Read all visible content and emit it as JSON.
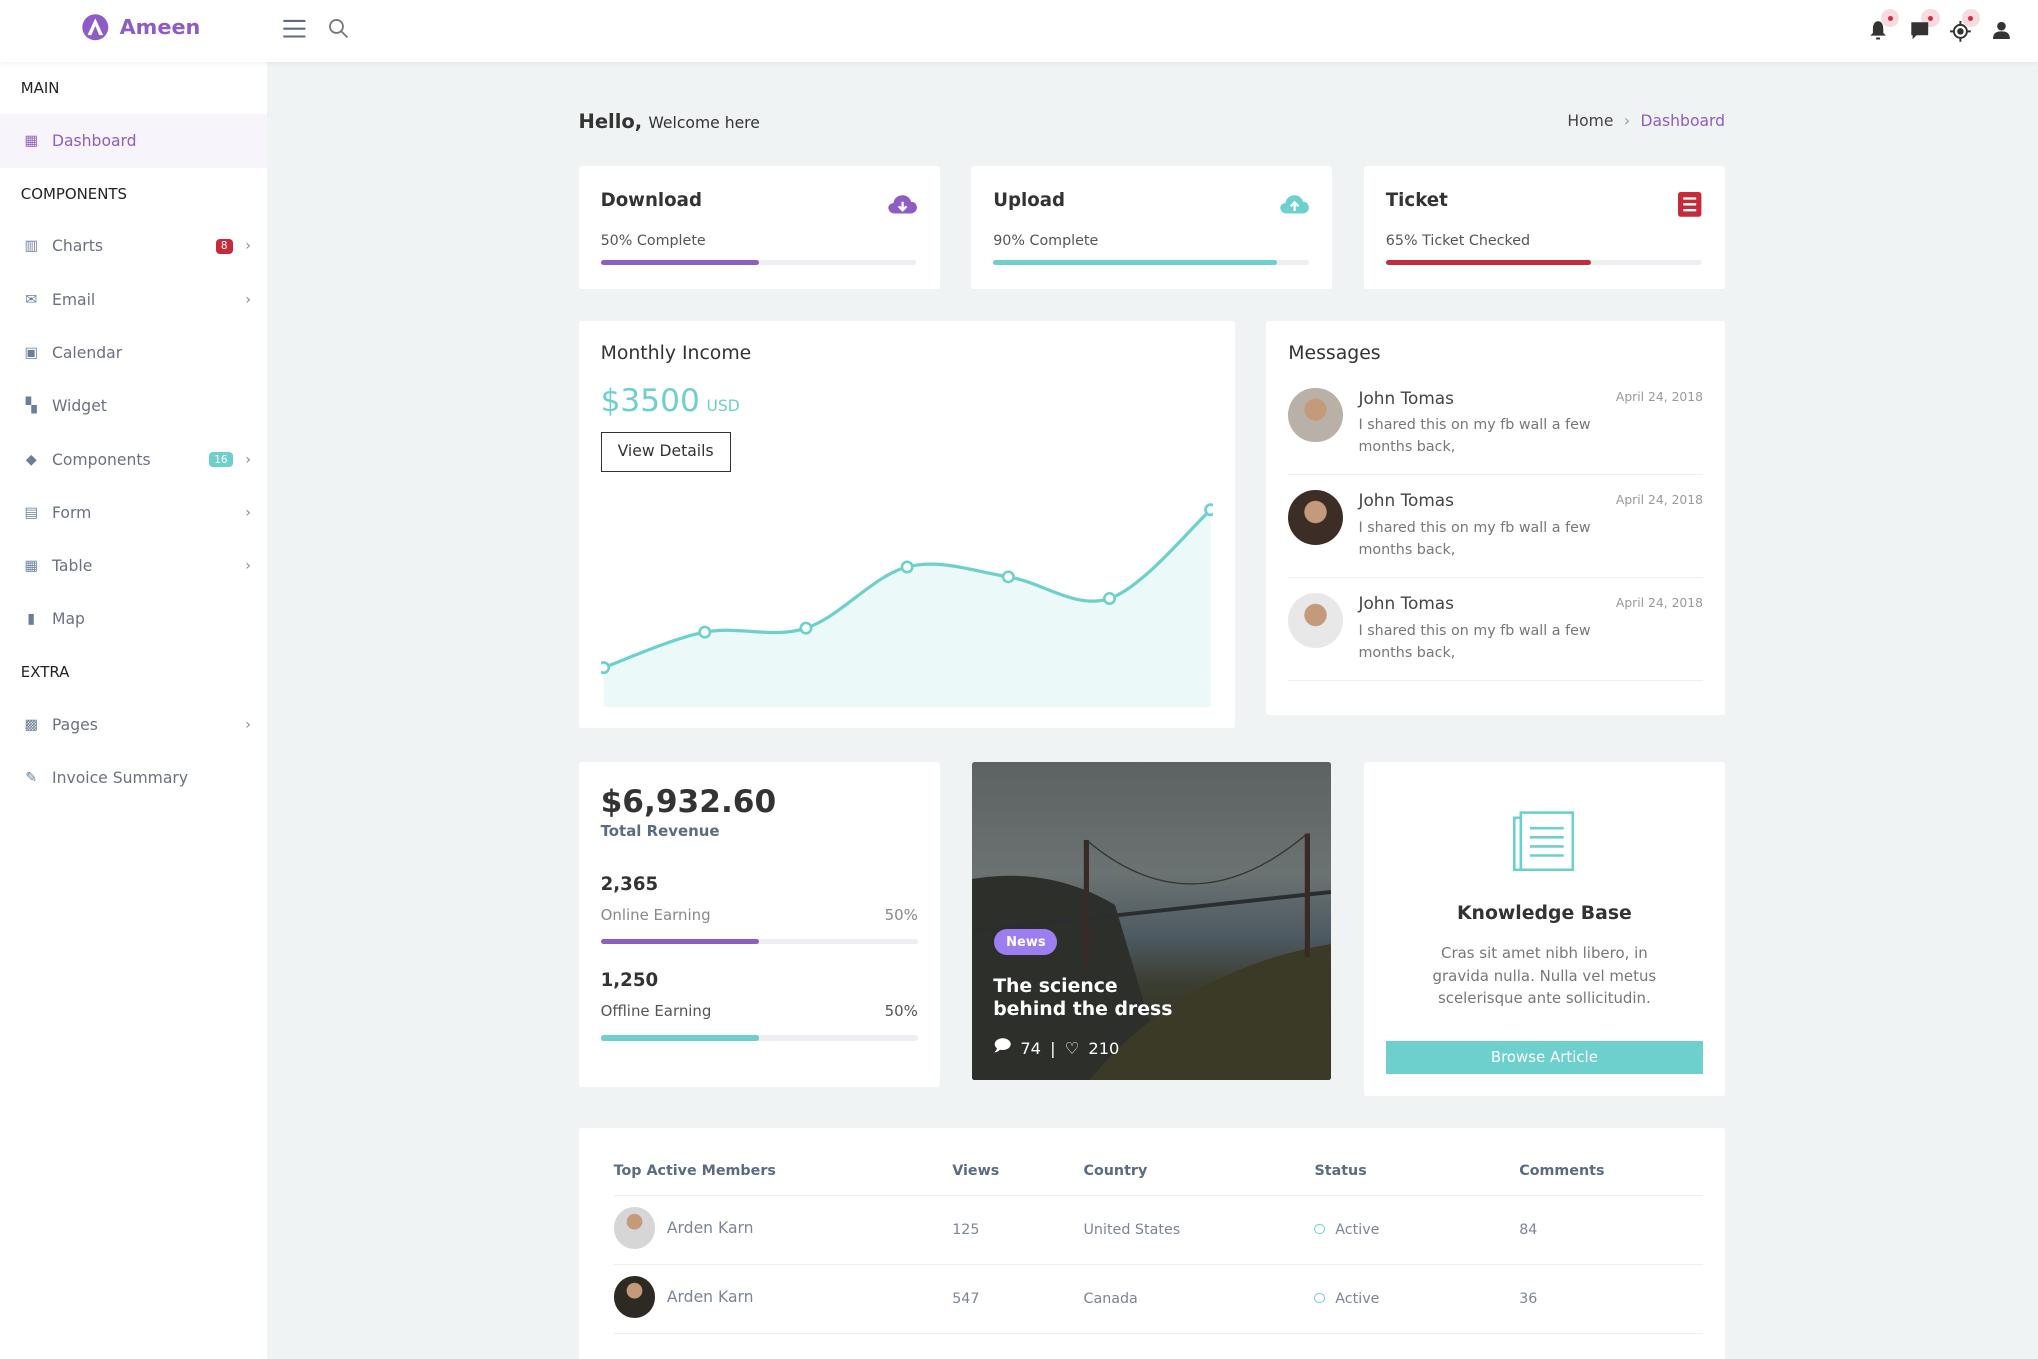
{
  "app": {
    "name": "Ameen"
  },
  "colors": {
    "purple": "#8e5cc5",
    "teal": "#6dd0cc",
    "red": "#c62b3a"
  },
  "header": {
    "icons": [
      "menu-icon",
      "search-icon",
      "bell-icon",
      "chat-icon",
      "location-icon",
      "user-icon"
    ]
  },
  "sidebar": {
    "sections": [
      "MAIN",
      "COMPONENTS",
      "EXTRA"
    ],
    "items": [
      {
        "label": "Dashboard",
        "icon": "dashboard-icon"
      },
      {
        "label": "Charts",
        "badge": "8",
        "icon": "bar-chart-icon"
      },
      {
        "label": "Email",
        "icon": "envelope-icon"
      },
      {
        "label": "Calendar",
        "icon": "calendar-icon"
      },
      {
        "label": "Widget",
        "icon": "widget-icon"
      },
      {
        "label": "Components",
        "badge": "16",
        "icon": "diamond-icon"
      },
      {
        "label": "Form",
        "icon": "form-icon"
      },
      {
        "label": "Table",
        "icon": "table-icon"
      },
      {
        "label": "Map",
        "icon": "map-icon"
      },
      {
        "label": "Pages",
        "icon": "pages-icon"
      },
      {
        "label": "Invoice Summary",
        "icon": "edit-icon"
      }
    ]
  },
  "page": {
    "hello": "Hello,",
    "welcome": "Welcome here",
    "breadcrumb": [
      "Home",
      "Dashboard"
    ]
  },
  "stats": [
    {
      "title": "Download",
      "label": "50% Complete",
      "progress": 50,
      "color": "#8e5cc5",
      "icon": "cloud-download-icon"
    },
    {
      "title": "Upload",
      "label": "90% Complete",
      "progress": 90,
      "color": "#6dd0cc",
      "icon": "cloud-upload-icon"
    },
    {
      "title": "Ticket",
      "label": "65% Ticket Checked",
      "progress": 65,
      "color": "#c62b3a",
      "icon": "list-icon"
    }
  ],
  "income": {
    "title": "Monthly Income",
    "amount": "$3500",
    "currency": "USD",
    "button": "View Details"
  },
  "chart_data": {
    "type": "area",
    "values": [
      20,
      38,
      40,
      71,
      66,
      55,
      100
    ],
    "ylim": [
      0,
      110
    ],
    "grid": false,
    "color": "#6dd0cc"
  },
  "messages": {
    "title": "Messages",
    "items": [
      {
        "name": "John Tomas",
        "date": "April 24, 2018",
        "text": "I shared this on my fb wall a few months back,"
      },
      {
        "name": "John Tomas",
        "date": "April 24, 2018",
        "text": "I shared this on my fb wall a few months back,"
      },
      {
        "name": "John Tomas",
        "date": "April 24, 2018",
        "text": "I shared this on my fb wall a few months back,"
      }
    ]
  },
  "revenue": {
    "total": "$6,932.60",
    "label": "Total Revenue",
    "rows": [
      {
        "value": "2,365",
        "label": "Online Earning",
        "pct": "50%",
        "progress": 50,
        "color": "#8e5cc5"
      },
      {
        "value": "1,250",
        "label": "Offline Earning",
        "pct": "50%",
        "progress": 50,
        "color": "#6dd0cc"
      }
    ]
  },
  "news": {
    "tag": "News",
    "title": "The science behind the dress",
    "comments": "74",
    "sep": "|",
    "likes": "210"
  },
  "kb": {
    "title": "Knowledge Base",
    "text": "Cras sit amet nibh libero, in gravida nulla. Nulla vel metus scelerisque ante sollicitudin.",
    "button": "Browse Article"
  },
  "table": {
    "headers": [
      "Top Active Members",
      "Views",
      "Country",
      "Status",
      "Comments"
    ],
    "rows": [
      {
        "name": "Arden Karn",
        "views": "125",
        "country": "United States",
        "status": "Active",
        "comments": "84"
      },
      {
        "name": "Arden Karn",
        "views": "547",
        "country": "Canada",
        "status": "Active",
        "comments": "36"
      }
    ]
  }
}
